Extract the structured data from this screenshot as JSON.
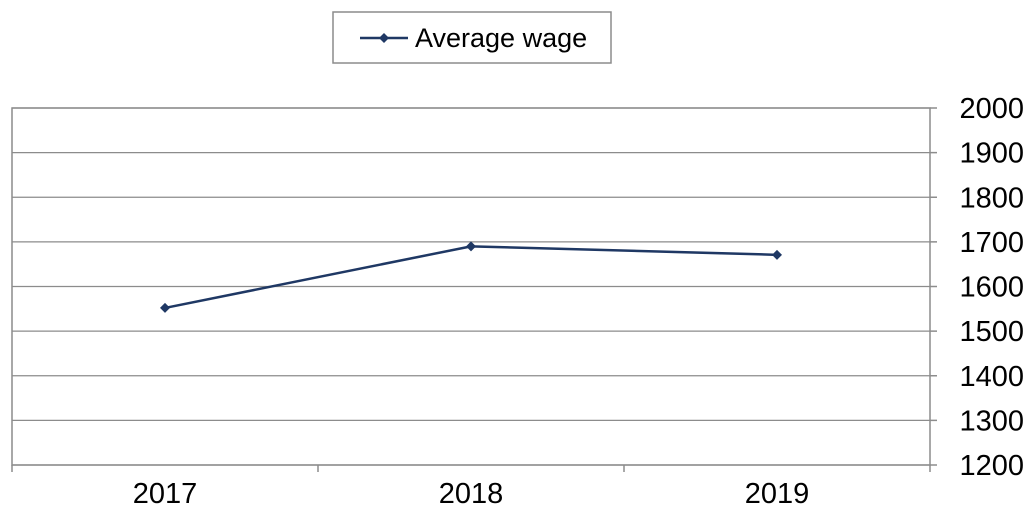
{
  "chart_data": {
    "type": "line",
    "title": "",
    "xlabel": "",
    "ylabel": "",
    "categories": [
      "2017",
      "2018",
      "2019"
    ],
    "series": [
      {
        "name": "Average wage",
        "values": [
          1552,
          1690,
          1671
        ],
        "color": "#1f3864",
        "marker": "diamond"
      }
    ],
    "ylim": [
      1200,
      2000
    ],
    "yticks": [
      2000,
      1900,
      1800,
      1700,
      1600,
      1500,
      1400,
      1300,
      1200
    ],
    "y_axis_side": "right",
    "grid": true,
    "legend_position": "top-center"
  }
}
